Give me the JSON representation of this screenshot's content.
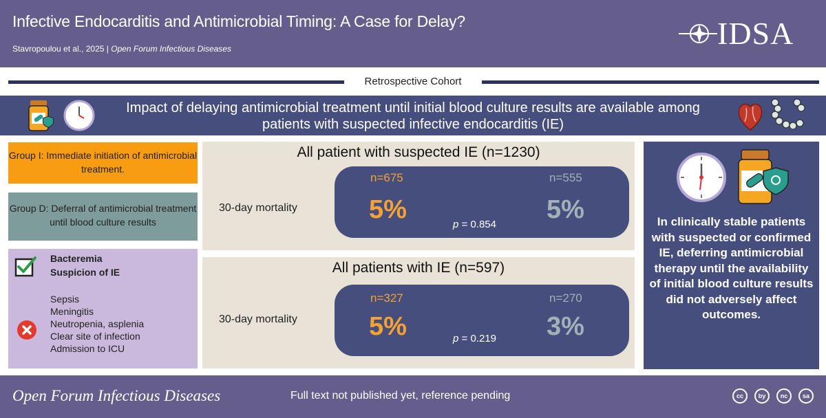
{
  "header": {
    "title": "Infective Endocarditis and Antimicrobial Timing: A Case for Delay?",
    "authors": "Stavropoulou et al., 2025 |",
    "journal": "Open Forum Infectious Diseases",
    "logo_text": "IDSA"
  },
  "study_type": "Retrospective Cohort",
  "banner": {
    "text": "Impact of delaying antimicrobial treatment until initial blood culture results are available among patients with suspected infective endocarditis (IE)"
  },
  "groups": {
    "group_i_label": "Group I:",
    "group_i_text": " Immediate initiation of antimicrobial treatment.",
    "group_d_label": "Group D:",
    "group_d_text": "  Deferral of antimicrobial treatment until blood culture results"
  },
  "criteria": {
    "inclusion": [
      "Bacteremia",
      "Suspicion of IE"
    ],
    "exclusion": [
      "Sepsis",
      "Meningitis",
      "Neutropenia, asplenia",
      "Clear site of infection",
      "Admission to ICU"
    ]
  },
  "results": [
    {
      "title": "All patient with suspected IE (n=1230)",
      "metric": "30-day mortality",
      "group_i_n": "n=675",
      "group_i_pct": "5%",
      "group_d_n": "n=555",
      "group_d_pct": "5%",
      "p_label": "p",
      "p_value": " = 0.854"
    },
    {
      "title": "All patients with IE (n=597)",
      "metric": "30-day mortality",
      "group_i_n": "n=327",
      "group_i_pct": "5%",
      "group_d_n": "n=270",
      "group_d_pct": "3%",
      "p_label": "p",
      "p_value": " = 0.219"
    }
  ],
  "conclusion": "In clinically stable patients with suspected or confirmed IE, deferring antimicrobial therapy until the availability of initial blood culture results did not adversely affect outcomes.",
  "footer": {
    "journal": "Open Forum Infectious Diseases",
    "note": "Full text not published yet, reference pending",
    "license_icons": [
      "cc",
      "by",
      "nc",
      "sa"
    ]
  },
  "colors": {
    "header_bg": "#655d8c",
    "banner_bg": "#454e7c",
    "group_i": "#f89c12",
    "group_d": "#7f9c9c",
    "criteria_bg": "#cbb9dd",
    "panel_bg": "#e9e2d7"
  }
}
